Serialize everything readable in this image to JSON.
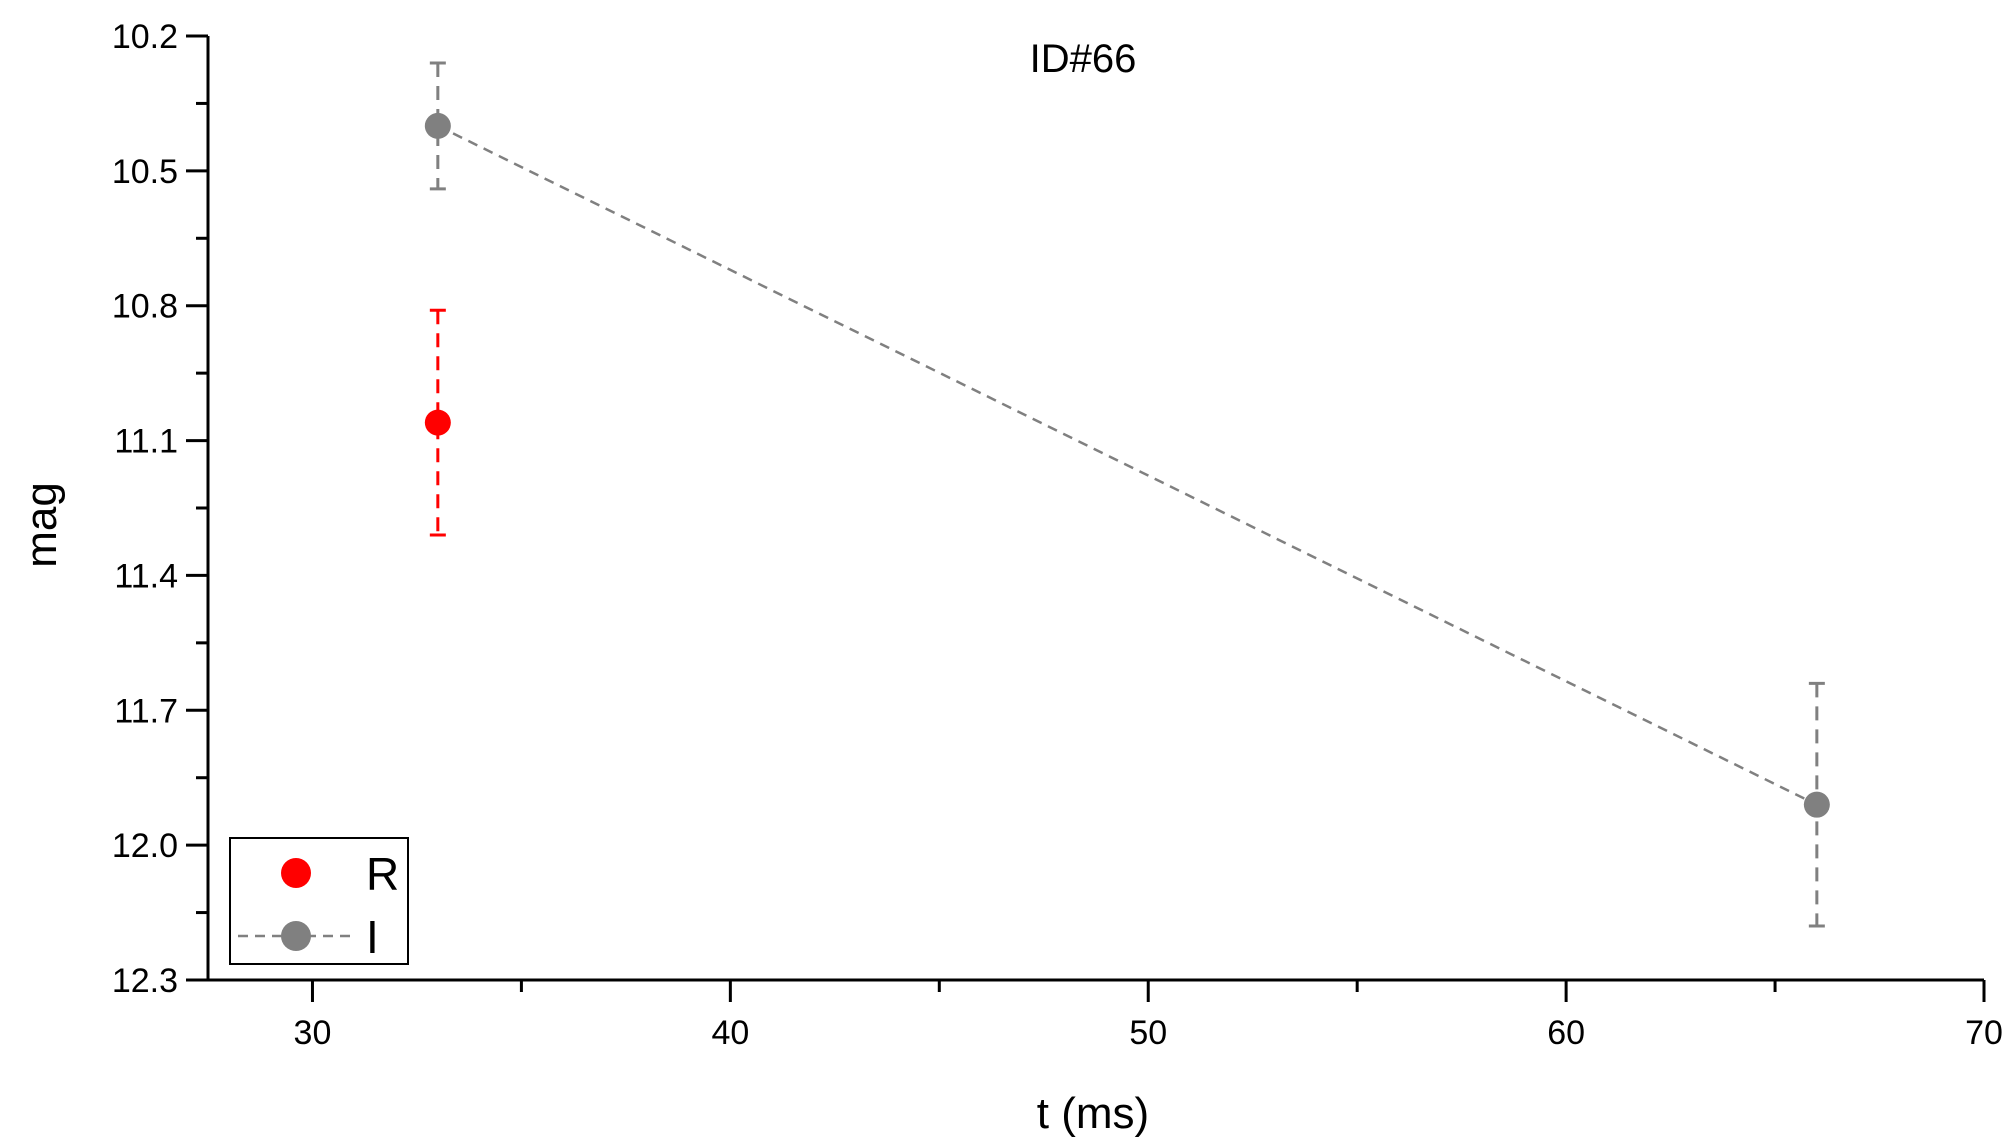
{
  "chart_data": {
    "type": "scatter",
    "title": "ID#66",
    "xlabel": "t (ms)",
    "ylabel": "mag",
    "xlim": [
      27.5,
      70
    ],
    "ylim": [
      10.2,
      12.3
    ],
    "y_inverted": true,
    "x_ticks": [
      30,
      40,
      50,
      60,
      70
    ],
    "x_tick_labels": [
      "30",
      "40",
      "50",
      "60",
      "70"
    ],
    "y_ticks": [
      10.2,
      10.5,
      10.8,
      11.1,
      11.4,
      11.7,
      12.0,
      12.3
    ],
    "y_tick_labels": [
      "10.2",
      "10.5",
      "10.8",
      "11.1",
      "11.4",
      "11.7",
      "12.0",
      "12.3"
    ],
    "grid": false,
    "legend_position": "bottom-left",
    "series": [
      {
        "name": "R",
        "color": "#ff0000",
        "line": "none",
        "errorbar_style": "dashed",
        "points": [
          {
            "x": 33,
            "y": 11.06,
            "err": 0.25
          }
        ]
      },
      {
        "name": "I",
        "color": "#808080",
        "line": "dashed",
        "errorbar_style": "dashed",
        "points": [
          {
            "x": 33,
            "y": 10.4,
            "err": 0.14
          },
          {
            "x": 66,
            "y": 11.91,
            "err": 0.27
          }
        ]
      }
    ]
  }
}
